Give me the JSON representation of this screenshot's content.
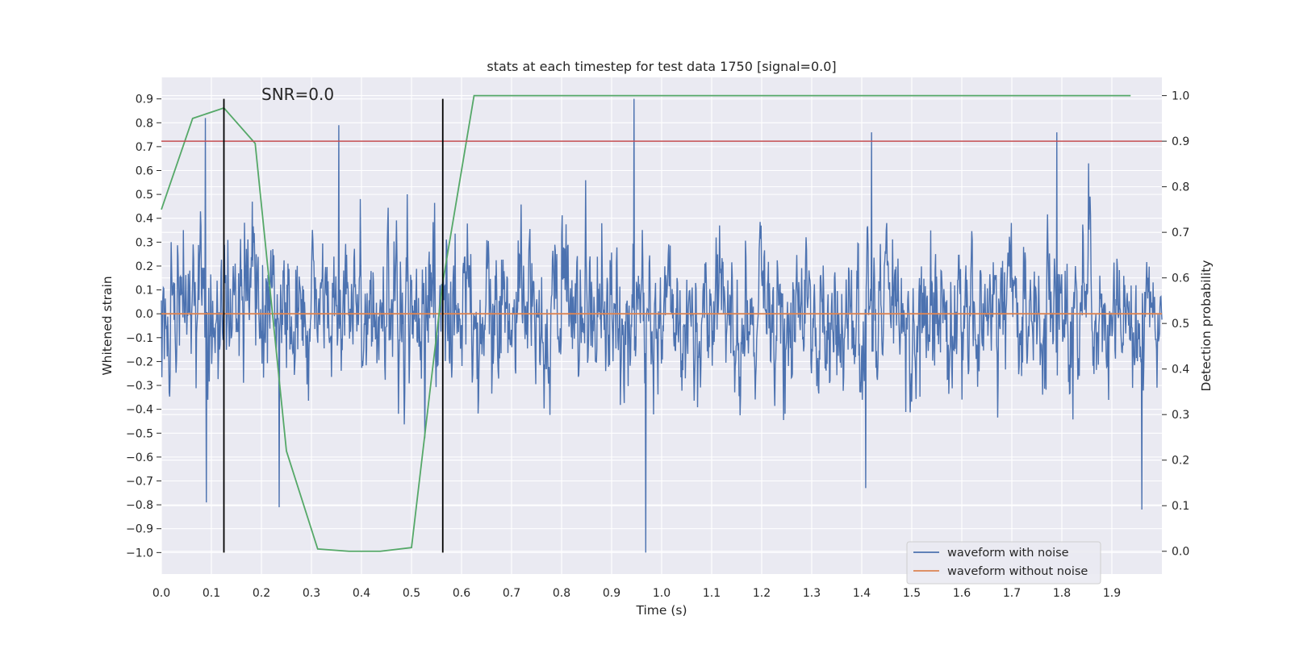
{
  "chart_data": {
    "type": "line",
    "title": "stats at each timestep for test data 1750 [signal=0.0]",
    "xlabel": "Time (s)",
    "ylabel_left": "Whitened strain",
    "ylabel_right": "Detection probability",
    "xlim": [
      0.0,
      2.0
    ],
    "ylim_left": [
      -1.09,
      0.99
    ],
    "ylim_right": [
      -0.05,
      1.04
    ],
    "x_ticks": [
      "0.0",
      "0.1",
      "0.2",
      "0.3",
      "0.4",
      "0.5",
      "0.6",
      "0.7",
      "0.8",
      "0.9",
      "1.0",
      "1.1",
      "1.2",
      "1.3",
      "1.4",
      "1.5",
      "1.6",
      "1.7",
      "1.8",
      "1.9"
    ],
    "y_left_ticks": [
      "0.9",
      "0.8",
      "0.7",
      "0.6",
      "0.5",
      "0.4",
      "0.3",
      "0.2",
      "0.1",
      "0.0",
      "−0.1",
      "−0.2",
      "−0.3",
      "−0.4",
      "−0.5",
      "−0.6",
      "−0.7",
      "−0.8",
      "−0.9",
      "−1.0"
    ],
    "y_right_ticks": [
      "1.0",
      "0.9",
      "0.8",
      "0.7",
      "0.6",
      "0.5",
      "0.4",
      "0.3",
      "0.2",
      "0.1",
      "0.0"
    ],
    "grid": true,
    "annotation": "SNR=0.0",
    "legend_position": "lower-right",
    "series": [
      {
        "name": "waveform with noise",
        "axis": "left",
        "color": "#4c72b0",
        "note": "dense whitened noise trace, approx. 2048 samples over 0-2 s; amplitude mostly within about -0.6 to 0.6 with spikes near 0.9 at t=0.945 and -1.0 at t=0.97"
      },
      {
        "name": "waveform without noise",
        "axis": "left",
        "color": "#dd8452",
        "x": [
          0.0,
          2.0
        ],
        "y": [
          0.0,
          0.0
        ]
      },
      {
        "axis": "right",
        "color": "#55a868",
        "x": [
          0.0,
          0.0625,
          0.125,
          0.1875,
          0.25,
          0.3125,
          0.375,
          0.4375,
          0.5,
          0.5625,
          0.625,
          0.6875,
          0.75,
          0.8125,
          0.875,
          0.9375,
          1.0,
          1.0625,
          1.125,
          1.1875,
          1.25,
          1.3125,
          1.375,
          1.4375,
          1.5,
          1.5625,
          1.625,
          1.6875,
          1.75,
          1.8125,
          1.875,
          1.9375
        ],
        "y": [
          0.75,
          0.95,
          0.973,
          0.895,
          0.22,
          0.005,
          0.0,
          0.0,
          0.008,
          0.59,
          1.0,
          1.0,
          1.0,
          1.0,
          1.0,
          1.0,
          1.0,
          1.0,
          1.0,
          1.0,
          1.0,
          1.0,
          1.0,
          1.0,
          1.0,
          1.0,
          1.0,
          1.0,
          1.0,
          1.0,
          1.0,
          1.0
        ]
      },
      {
        "axis": "right",
        "color": "#c44e52",
        "type": "hline",
        "y": 0.9
      }
    ],
    "vlines": [
      {
        "x": 0.125,
        "color": "#000000",
        "ymin": -1.0,
        "ymax": 0.9
      },
      {
        "x": 0.5625,
        "color": "#000000",
        "ymin": -1.0,
        "ymax": 0.9
      }
    ]
  }
}
